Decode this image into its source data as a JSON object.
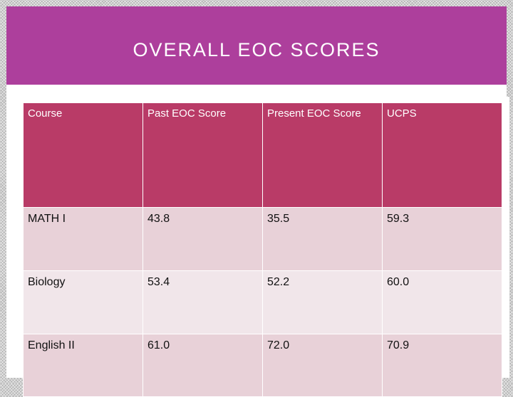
{
  "slide": {
    "title": "OVERALL EOC SCORES"
  },
  "table": {
    "headers": [
      "Course",
      "Past EOC Score",
      "Present EOC Score",
      "UCPS"
    ],
    "rows": [
      [
        "MATH I",
        "43.8",
        "35.5",
        "59.3"
      ],
      [
        "Biology",
        "53.4",
        "52.2",
        "60.0"
      ],
      [
        "English II",
        "61.0",
        "72.0",
        "70.9"
      ]
    ]
  },
  "colors": {
    "title_band": "#ad3f9c",
    "header_row": "#b93b67",
    "row_odd": "#e8d1d8",
    "row_even": "#f1e6ea"
  }
}
